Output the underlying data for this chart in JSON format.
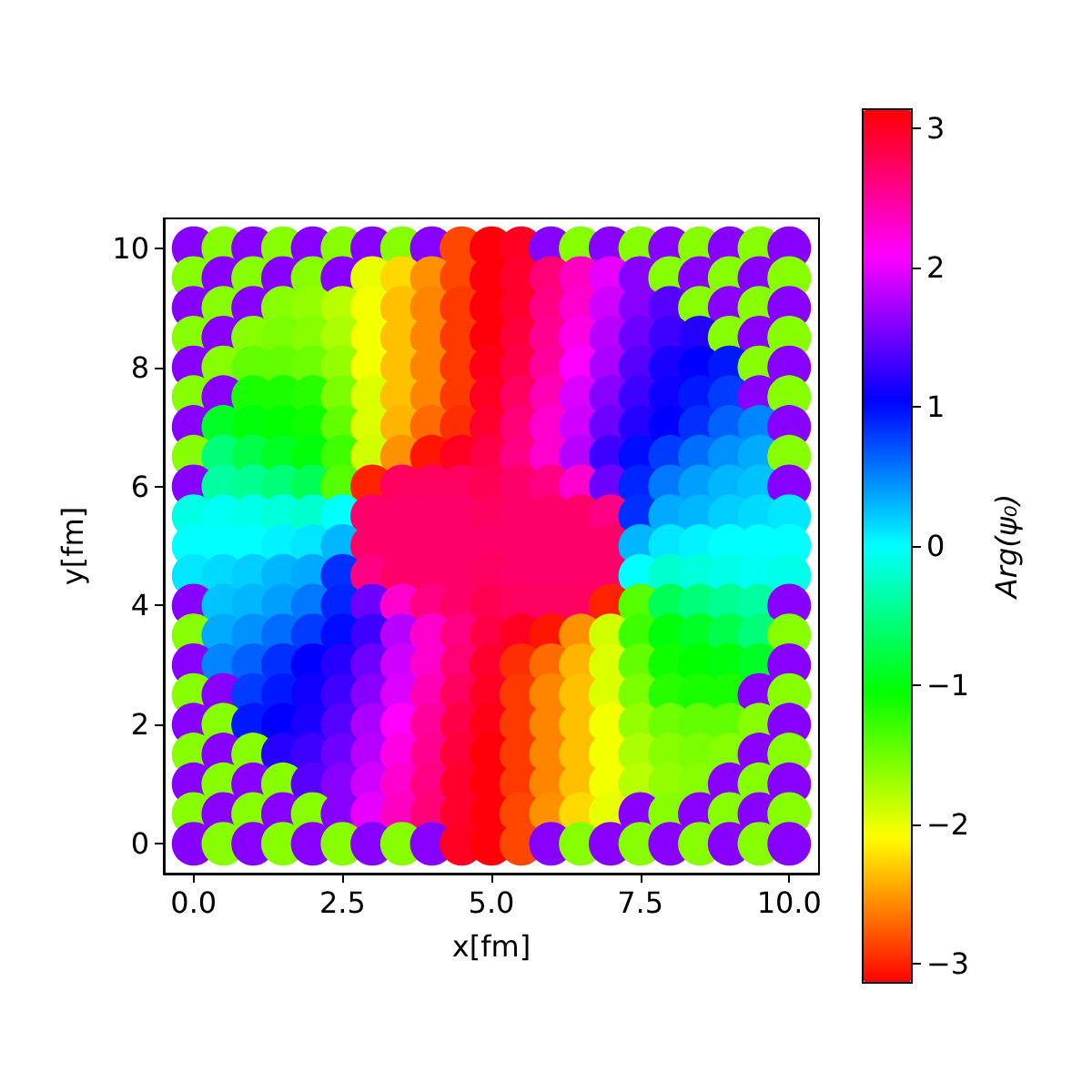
{
  "chart_data": {
    "type": "scatter",
    "xlabel": "x[fm]",
    "ylabel": "y[fm]",
    "clabel": "Arg(ψ₀)",
    "marker": "circle",
    "xlim": [
      -0.5,
      10.5
    ],
    "ylim": [
      -0.5,
      10.5
    ],
    "xticks": [
      {
        "value": 0,
        "label": "0.0"
      },
      2.5,
      {
        "value": 5,
        "label": "5.0"
      },
      7.5,
      {
        "value": 10,
        "label": "10.0"
      }
    ],
    "yticks": [
      0,
      2,
      4,
      6,
      8,
      10
    ],
    "clim": [
      -3.14,
      3.14
    ],
    "cticks": [
      {
        "value": -3,
        "label": "−3"
      },
      {
        "value": -2,
        "label": "−2"
      },
      {
        "value": -1,
        "label": "−1"
      },
      0,
      1,
      2,
      3
    ],
    "x": [
      0,
      0.5,
      1,
      1.5,
      2,
      2.5,
      3,
      3.5,
      4,
      4.5,
      5,
      5.5,
      6,
      6.5,
      7,
      7.5,
      8,
      8.5,
      9,
      9.5,
      10,
      0,
      0.5,
      1,
      1.5,
      2,
      2.5,
      3,
      3.5,
      4,
      4.5,
      5,
      5.5,
      6,
      6.5,
      7,
      7.5,
      8,
      8.5,
      9,
      9.5,
      10,
      0,
      0.5,
      1,
      1.5,
      2,
      2.5,
      3,
      3.5,
      4,
      4.5,
      5,
      5.5,
      6,
      6.5,
      7,
      7.5,
      8,
      8.5,
      9,
      9.5,
      10,
      0,
      0.5,
      1,
      1.5,
      2,
      2.5,
      3,
      3.5,
      4,
      4.5,
      5,
      5.5,
      6,
      6.5,
      7,
      7.5,
      8,
      8.5,
      9,
      9.5,
      10,
      0,
      0.5,
      1,
      1.5,
      2,
      2.5,
      3,
      3.5,
      4,
      4.5,
      5,
      5.5,
      6,
      6.5,
      7,
      7.5,
      8,
      8.5,
      9,
      9.5,
      10,
      0,
      0.5,
      1,
      1.5,
      2,
      2.5,
      3,
      3.5,
      4,
      4.5,
      5,
      5.5,
      6,
      6.5,
      7,
      7.5,
      8,
      8.5,
      9,
      9.5,
      10,
      0,
      0.5,
      1,
      1.5,
      2,
      2.5,
      3,
      3.5,
      4,
      4.5,
      5,
      5.5,
      6,
      6.5,
      7,
      7.5,
      8,
      8.5,
      9,
      9.5,
      10,
      0,
      0.5,
      1,
      1.5,
      2,
      2.5,
      3,
      3.5,
      4,
      4.5,
      5,
      5.5,
      6,
      6.5,
      7,
      7.5,
      8,
      8.5,
      9,
      9.5,
      10,
      0,
      0.5,
      1,
      1.5,
      2,
      2.5,
      3,
      3.5,
      4,
      4.5,
      5,
      5.5,
      6,
      6.5,
      7,
      7.5,
      8,
      8.5,
      9,
      9.5,
      10,
      0,
      0.5,
      1,
      1.5,
      2,
      2.5,
      3,
      3.5,
      4,
      4.5,
      5,
      5.5,
      6,
      6.5,
      7,
      7.5,
      8,
      8.5,
      9,
      9.5,
      10,
      0,
      0.5,
      1,
      1.5,
      2,
      2.5,
      3,
      3.5,
      4,
      4.5,
      5,
      5.5,
      6,
      6.5,
      7,
      7.5,
      8,
      8.5,
      9,
      9.5,
      10,
      0,
      0.5,
      1,
      1.5,
      2,
      2.5,
      3,
      3.5,
      4,
      4.5,
      5,
      5.5,
      6,
      6.5,
      7,
      7.5,
      8,
      8.5,
      9,
      9.5,
      10,
      0,
      0.5,
      1,
      1.5,
      2,
      2.5,
      3,
      3.5,
      4,
      4.5,
      5,
      5.5,
      6,
      6.5,
      7,
      7.5,
      8,
      8.5,
      9,
      9.5,
      10,
      0,
      0.5,
      1,
      1.5,
      2,
      2.5,
      3,
      3.5,
      4,
      4.5,
      5,
      5.5,
      6,
      6.5,
      7,
      7.5,
      8,
      8.5,
      9,
      9.5,
      10,
      0,
      0.5,
      1,
      1.5,
      2,
      2.5,
      3,
      3.5,
      4,
      4.5,
      5,
      5.5,
      6,
      6.5,
      7,
      7.5,
      8,
      8.5,
      9,
      9.5,
      10,
      0,
      0.5,
      1,
      1.5,
      2,
      2.5,
      3,
      3.5,
      4,
      4.5,
      5,
      5.5,
      6,
      6.5,
      7,
      7.5,
      8,
      8.5,
      9,
      9.5,
      10,
      0,
      0.5,
      1,
      1.5,
      2,
      2.5,
      3,
      3.5,
      4,
      4.5,
      5,
      5.5,
      6,
      6.5,
      7,
      7.5,
      8,
      8.5,
      9,
      9.5,
      10,
      0,
      0.5,
      1,
      1.5,
      2,
      2.5,
      3,
      3.5,
      4,
      4.5,
      5,
      5.5,
      6,
      6.5,
      7,
      7.5,
      8,
      8.5,
      9,
      9.5,
      10,
      0,
      0.5,
      1,
      1.5,
      2,
      2.5,
      3,
      3.5,
      4,
      4.5,
      5,
      5.5,
      6,
      6.5,
      7,
      7.5,
      8,
      8.5,
      9,
      9.5,
      10,
      0,
      0.5,
      1,
      1.5,
      2,
      2.5,
      3,
      3.5,
      4,
      4.5,
      5,
      5.5,
      6,
      6.5,
      7,
      7.5,
      8,
      8.5,
      9,
      9.5,
      10,
      0,
      0.5,
      1,
      1.5,
      2,
      2.5,
      3,
      3.5,
      4,
      4.5,
      5,
      5.5,
      6,
      6.5,
      7,
      7.5,
      8,
      8.5,
      9,
      9.5,
      10
    ],
    "values": [
      10,
      10,
      10,
      10,
      10,
      10,
      10,
      10,
      10,
      10,
      10,
      10,
      10,
      10,
      10,
      10,
      10,
      10,
      10,
      10,
      10,
      9.5,
      9.5,
      9.5,
      9.5,
      9.5,
      9.5,
      9.5,
      9.5,
      9.5,
      9.5,
      9.5,
      9.5,
      9.5,
      9.5,
      9.5,
      9.5,
      9.5,
      9.5,
      9.5,
      9.5,
      9.5,
      9,
      9,
      9,
      9,
      9,
      9,
      9,
      9,
      9,
      9,
      9,
      9,
      9,
      9,
      9,
      9,
      9,
      9,
      9,
      9,
      9,
      8.5,
      8.5,
      8.5,
      8.5,
      8.5,
      8.5,
      8.5,
      8.5,
      8.5,
      8.5,
      8.5,
      8.5,
      8.5,
      8.5,
      8.5,
      8.5,
      8.5,
      8.5,
      8.5,
      8.5,
      8.5,
      8,
      8,
      8,
      8,
      8,
      8,
      8,
      8,
      8,
      8,
      8,
      8,
      8,
      8,
      8,
      8,
      8,
      8,
      8,
      8,
      8,
      7.5,
      7.5,
      7.5,
      7.5,
      7.5,
      7.5,
      7.5,
      7.5,
      7.5,
      7.5,
      7.5,
      7.5,
      7.5,
      7.5,
      7.5,
      7.5,
      7.5,
      7.5,
      7.5,
      7.5,
      7.5,
      7,
      7,
      7,
      7,
      7,
      7,
      7,
      7,
      7,
      7,
      7,
      7,
      7,
      7,
      7,
      7,
      7,
      7,
      7,
      7,
      7,
      6.5,
      6.5,
      6.5,
      6.5,
      6.5,
      6.5,
      6.5,
      6.5,
      6.5,
      6.5,
      6.5,
      6.5,
      6.5,
      6.5,
      6.5,
      6.5,
      6.5,
      6.5,
      6.5,
      6.5,
      6.5,
      6,
      6,
      6,
      6,
      6,
      6,
      6,
      6,
      6,
      6,
      6,
      6,
      6,
      6,
      6,
      6,
      6,
      6,
      6,
      6,
      6,
      5.5,
      5.5,
      5.5,
      5.5,
      5.5,
      5.5,
      5.5,
      5.5,
      5.5,
      5.5,
      5.5,
      5.5,
      5.5,
      5.5,
      5.5,
      5.5,
      5.5,
      5.5,
      5.5,
      5.5,
      5.5,
      5,
      5,
      5,
      5,
      5,
      5,
      5,
      5,
      5,
      5,
      5,
      5,
      5,
      5,
      5,
      5,
      5,
      5,
      5,
      5,
      5,
      4.5,
      4.5,
      4.5,
      4.5,
      4.5,
      4.5,
      4.5,
      4.5,
      4.5,
      4.5,
      4.5,
      4.5,
      4.5,
      4.5,
      4.5,
      4.5,
      4.5,
      4.5,
      4.5,
      4.5,
      4.5,
      4,
      4,
      4,
      4,
      4,
      4,
      4,
      4,
      4,
      4,
      4,
      4,
      4,
      4,
      4,
      4,
      4,
      4,
      4,
      4,
      4,
      3.5,
      3.5,
      3.5,
      3.5,
      3.5,
      3.5,
      3.5,
      3.5,
      3.5,
      3.5,
      3.5,
      3.5,
      3.5,
      3.5,
      3.5,
      3.5,
      3.5,
      3.5,
      3.5,
      3.5,
      3.5,
      3,
      3,
      3,
      3,
      3,
      3,
      3,
      3,
      3,
      3,
      3,
      3,
      3,
      3,
      3,
      3,
      3,
      3,
      3,
      3,
      3,
      2.5,
      2.5,
      2.5,
      2.5,
      2.5,
      2.5,
      2.5,
      2.5,
      2.5,
      2.5,
      2.5,
      2.5,
      2.5,
      2.5,
      2.5,
      2.5,
      2.5,
      2.5,
      2.5,
      2.5,
      2.5,
      2,
      2,
      2,
      2,
      2,
      2,
      2,
      2,
      2,
      2,
      2,
      2,
      2,
      2,
      2,
      2,
      2,
      2,
      2,
      2,
      2,
      1.5,
      1.5,
      1.5,
      1.5,
      1.5,
      1.5,
      1.5,
      1.5,
      1.5,
      1.5,
      1.5,
      1.5,
      1.5,
      1.5,
      1.5,
      1.5,
      1.5,
      1.5,
      1.5,
      1.5,
      1.5,
      1,
      1,
      1,
      1,
      1,
      1,
      1,
      1,
      1,
      1,
      1,
      1,
      1,
      1,
      1,
      1,
      1,
      1,
      1,
      1,
      1,
      0.5,
      0.5,
      0.5,
      0.5,
      0.5,
      0.5,
      0.5,
      0.5,
      0.5,
      0.5,
      0.5,
      0.5,
      0.5,
      0.5,
      0.5,
      0.5,
      0.5,
      0.5,
      0.5,
      0.5,
      0.5,
      0,
      0,
      0,
      0,
      0,
      0,
      0,
      0,
      0,
      0,
      0,
      0,
      0,
      0,
      0,
      0,
      0,
      0,
      0,
      0,
      0
    ],
    "cvalues": [
      1.6,
      -1.6,
      1.6,
      -1.6,
      1.6,
      -1.6,
      1.6,
      -1.6,
      1.6,
      -2.85,
      3.1,
      3.0,
      1.6,
      -1.6,
      1.6,
      -1.6,
      1.6,
      -1.6,
      1.6,
      -1.6,
      1.6,
      -1.6,
      1.6,
      -1.6,
      1.6,
      -1.6,
      1.6,
      -2.0,
      -2.25,
      -2.55,
      -2.85,
      3.1,
      2.95,
      2.65,
      2.35,
      2.0,
      1.6,
      -1.6,
      1.6,
      -1.6,
      1.6,
      -1.6,
      1.6,
      -1.6,
      1.6,
      -1.6,
      -1.65,
      -1.8,
      -2.05,
      -2.35,
      -2.6,
      -2.9,
      3.1,
      2.95,
      2.6,
      2.3,
      1.9,
      1.6,
      1.4,
      -1.6,
      1.6,
      -1.6,
      1.6,
      -1.6,
      1.6,
      -1.6,
      -1.55,
      -1.6,
      -1.75,
      -2.05,
      -2.35,
      -2.6,
      -2.9,
      3.1,
      2.9,
      2.55,
      2.2,
      1.8,
      1.5,
      1.3,
      1.2,
      -1.6,
      1.6,
      -1.6,
      1.6,
      -1.6,
      -1.45,
      -1.45,
      -1.5,
      -1.65,
      -2.05,
      -2.35,
      -2.6,
      -2.9,
      3.05,
      2.85,
      2.5,
      2.1,
      1.75,
      1.4,
      1.15,
      1.05,
      0.95,
      -1.6,
      1.6,
      -1.6,
      1.6,
      -1.15,
      -1.15,
      -1.2,
      -1.55,
      -1.95,
      -2.35,
      -2.6,
      -2.9,
      3.0,
      2.75,
      2.4,
      1.95,
      1.6,
      1.3,
      1.1,
      0.95,
      0.8,
      1.6,
      -1.6,
      1.6,
      -0.9,
      -1.0,
      -1.05,
      -1.1,
      -1.45,
      -1.95,
      -2.4,
      -2.7,
      -2.95,
      2.95,
      2.65,
      2.3,
      1.9,
      1.5,
      1.2,
      1.05,
      0.85,
      0.65,
      0.5,
      1.6,
      -1.6,
      -0.55,
      -0.75,
      -0.9,
      -1.0,
      -1.3,
      -1.9,
      -2.55,
      -3.05,
      3.0,
      2.85,
      2.6,
      2.3,
      1.8,
      1.3,
      1.0,
      0.8,
      0.6,
      0.45,
      0.35,
      -1.6,
      1.6,
      -0.4,
      -0.45,
      -0.55,
      -0.7,
      -1.4,
      -3.0,
      2.75,
      2.75,
      2.75,
      2.8,
      2.7,
      2.6,
      2.3,
      1.5,
      0.9,
      0.55,
      0.4,
      0.3,
      0.25,
      1.6,
      -0.1,
      -0.05,
      -0.1,
      -0.15,
      -0.2,
      0.0,
      2.7,
      2.7,
      2.7,
      2.7,
      2.75,
      2.7,
      2.7,
      2.7,
      2.6,
      0.85,
      0.35,
      0.3,
      0.2,
      0.15,
      0.1,
      0.0,
      0.0,
      0.0,
      0.05,
      0.1,
      0.3,
      2.7,
      2.7,
      2.7,
      2.7,
      2.7,
      2.7,
      2.7,
      2.7,
      2.7,
      0.3,
      0.1,
      0.05,
      0.0,
      0.0,
      0.0,
      0.1,
      0.15,
      0.2,
      0.3,
      0.35,
      0.85,
      2.6,
      2.7,
      2.7,
      2.7,
      2.75,
      2.7,
      2.7,
      2.7,
      2.7,
      0.0,
      -0.2,
      -0.15,
      -0.1,
      -0.05,
      -0.1,
      1.6,
      0.25,
      0.3,
      0.4,
      0.55,
      0.9,
      1.5,
      2.3,
      2.6,
      2.7,
      2.8,
      2.75,
      2.75,
      2.75,
      -3.0,
      -1.4,
      -0.7,
      -0.55,
      -0.45,
      -0.4,
      1.6,
      -1.6,
      0.35,
      0.45,
      0.6,
      0.8,
      1.0,
      1.3,
      1.8,
      2.3,
      2.6,
      2.85,
      3.0,
      -3.05,
      -2.55,
      -1.9,
      -1.3,
      -1.0,
      -0.9,
      -0.75,
      -0.55,
      -1.6,
      1.6,
      0.5,
      0.65,
      0.85,
      1.05,
      1.2,
      1.5,
      1.9,
      2.3,
      2.65,
      2.95,
      -2.95,
      -2.7,
      -2.4,
      -1.95,
      -1.45,
      -1.1,
      -1.05,
      -1.0,
      -0.9,
      1.6,
      -1.6,
      1.6,
      0.8,
      0.95,
      1.1,
      1.3,
      1.6,
      1.95,
      2.4,
      2.75,
      3.0,
      -2.9,
      -2.6,
      -2.35,
      -1.95,
      -1.55,
      -1.2,
      -1.15,
      -1.15,
      1.6,
      -1.6,
      1.6,
      -1.6,
      0.95,
      1.05,
      1.15,
      1.4,
      1.75,
      2.1,
      2.5,
      2.85,
      3.05,
      -2.9,
      -2.6,
      -2.35,
      -2.05,
      -1.65,
      -1.5,
      -1.45,
      -1.45,
      -1.6,
      1.6,
      -1.6,
      1.6,
      -1.6,
      1.2,
      1.3,
      1.5,
      1.8,
      2.2,
      2.55,
      2.9,
      3.1,
      -2.9,
      -2.6,
      -2.35,
      -2.05,
      -1.75,
      -1.6,
      -1.55,
      -1.6,
      1.6,
      -1.6,
      1.6,
      -1.6,
      1.6,
      -1.6,
      1.4,
      1.6,
      1.9,
      2.3,
      2.6,
      2.95,
      3.1,
      -2.9,
      -2.6,
      -2.35,
      -2.05,
      -1.8,
      -1.65,
      -1.6,
      1.6,
      -1.6,
      1.6,
      -1.6,
      1.6,
      -1.6,
      1.6,
      -1.6,
      1.6,
      2.0,
      2.35,
      2.65,
      2.95,
      3.1,
      -2.85,
      -2.55,
      -2.25,
      -2.0,
      1.6,
      -1.6,
      1.6,
      -1.6,
      1.6,
      -1.6,
      1.6,
      -1.6,
      1.6,
      -1.6,
      1.6,
      -1.6,
      1.6,
      -1.6,
      1.6,
      3.0,
      3.1,
      -2.85,
      1.6,
      -1.6,
      1.6,
      -1.6,
      1.6,
      -1.6,
      1.6,
      -1.6,
      1.6
    ]
  }
}
